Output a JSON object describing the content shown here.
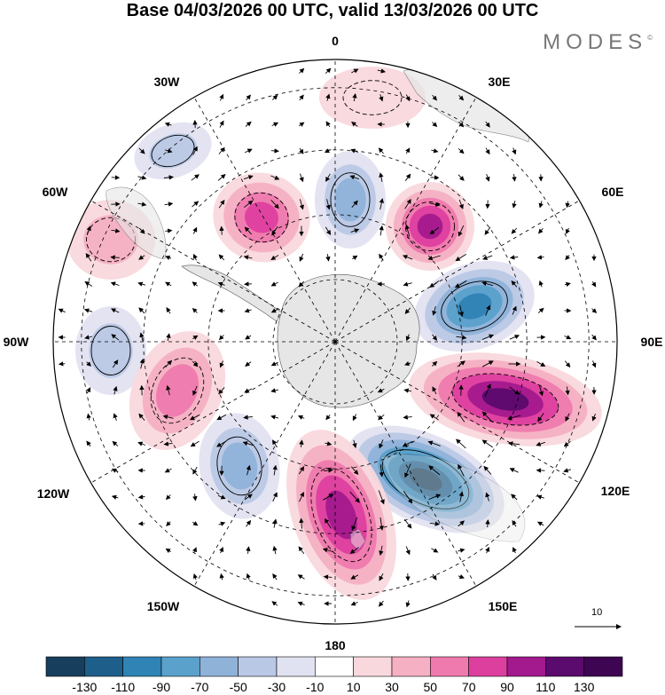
{
  "title": "Base 04/03/2026 00 UTC, valid 13/03/2026 00 UTC",
  "logo": "MODES",
  "logo_mark": "©",
  "longitude_labels": {
    "lon_0": "0",
    "lon_30e": "30E",
    "lon_60e": "60E",
    "lon_90e": "90E",
    "lon_120e": "120E",
    "lon_150e": "150E",
    "lon_180": "180",
    "lon_150w": "150W",
    "lon_120w": "120W",
    "lon_90w": "90W",
    "lon_60w": "60W",
    "lon_30w": "30W"
  },
  "vector_scale": "10",
  "colorbar": {
    "ticks": [
      "-130",
      "-110",
      "-90",
      "-70",
      "-50",
      "-30",
      "-10",
      "10",
      "30",
      "50",
      "70",
      "90",
      "110",
      "130"
    ],
    "colors": [
      "#173e5c",
      "#1d5f8a",
      "#2f83b5",
      "#5aa1cc",
      "#8fb2d9",
      "#b9c8e5",
      "#e1e2f1",
      "#ffffff",
      "#f9d8dd",
      "#f6b0c3",
      "#ef7aae",
      "#dd3f9f",
      "#a3198e",
      "#5b0a6e",
      "#3e0552"
    ]
  },
  "anomaly_centers": [
    {
      "name": "low-east-60e",
      "value": -95
    },
    {
      "name": "low-southeast-115e",
      "value": -140
    },
    {
      "name": "low-southwest-130w",
      "value": -70
    },
    {
      "name": "low-near-0",
      "value": -70
    },
    {
      "name": "low-west-90w",
      "value": -40
    },
    {
      "name": "low-northwest-30w",
      "value": -40
    },
    {
      "name": "high-east-45e",
      "value": 100
    },
    {
      "name": "high-east-100e",
      "value": 120
    },
    {
      "name": "high-south-160e",
      "value": 110
    },
    {
      "name": "high-northwest-40w",
      "value": 75
    },
    {
      "name": "high-west-60w",
      "value": 50
    },
    {
      "name": "high-southwest-100w",
      "value": 65
    },
    {
      "name": "high-north-15e",
      "value": 30
    }
  ]
}
